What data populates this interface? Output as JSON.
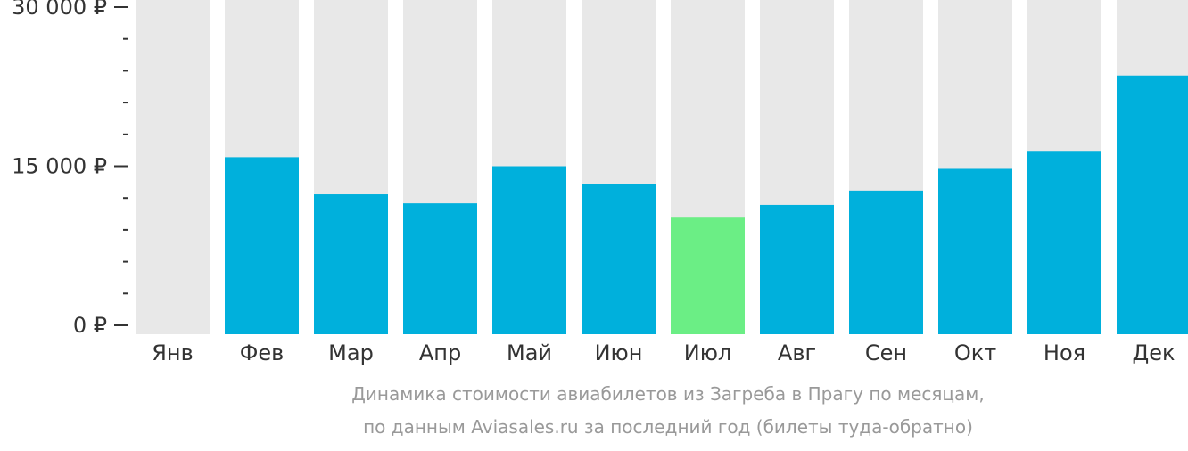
{
  "chart_data": {
    "type": "bar",
    "currency": "₽",
    "categories": [
      "Янв",
      "Фев",
      "Мар",
      "Апр",
      "Май",
      "Июн",
      "Июл",
      "Авг",
      "Сен",
      "Окт",
      "Ноя",
      "Дек"
    ],
    "values": [
      null,
      15850,
      12350,
      11500,
      15000,
      13300,
      10150,
      11350,
      12700,
      14750,
      16450,
      23550
    ],
    "y_ticks": [
      {
        "value": 0,
        "label": "0 ₽"
      },
      {
        "value": 15000,
        "label": "15 000 ₽"
      },
      {
        "value": 30000,
        "label": "30 000 ₽"
      }
    ],
    "minor_ticks": [
      3000,
      6000,
      9000,
      12000,
      18000,
      21000,
      24000,
      27000
    ],
    "ylim": [
      0,
      30000
    ],
    "highlight_index": 6,
    "colors": {
      "bar": "#00b0dc",
      "highlight": "#6bee85",
      "track": "#e8e8e8",
      "axis": "#333333",
      "caption": "#999999"
    },
    "title": "Динамика стоимости авиабилетов из Загреба в Прагу по месяцам,",
    "subtitle": "по данным Aviasales.ru за последний год (билеты туда-обратно)",
    "xlabel": "",
    "ylabel": ""
  }
}
